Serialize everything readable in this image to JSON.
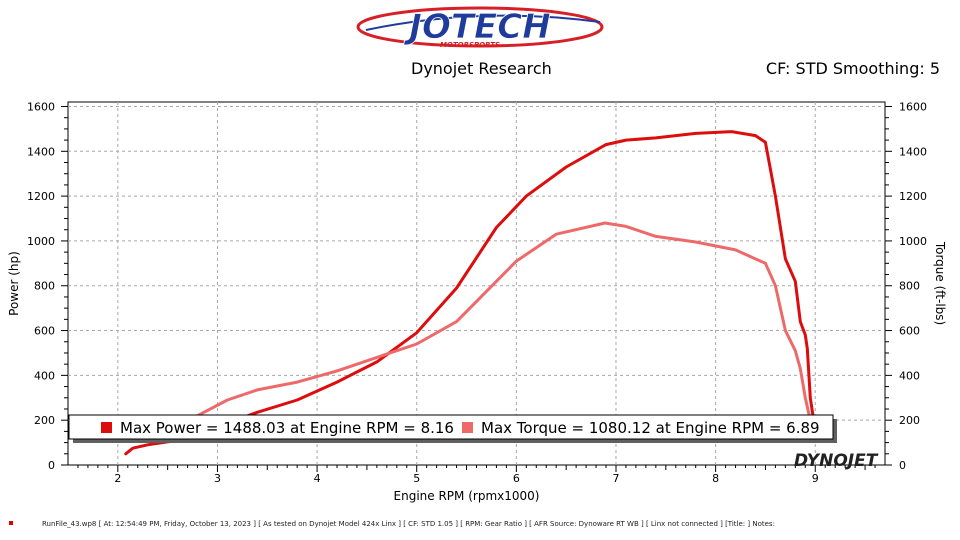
{
  "header": {
    "logo_text": "JOTECH",
    "logo_subtext": "MOTORSPORTS",
    "research": "Dynojet Research",
    "cf_info": "CF: STD Smoothing: 5"
  },
  "colors": {
    "power": "#dd0d0d",
    "torque": "#ee6a6a",
    "logo_red": "#d61f26",
    "logo_blue": "#1f3b9c"
  },
  "chart_data": {
    "type": "line",
    "xlabel": "Engine RPM (rpmx1000)",
    "ylabel_left": "Power (hp)",
    "ylabel_right": "Torque (ft-lbs)",
    "xlim": [
      1.5,
      9.7
    ],
    "ylim": [
      0,
      1620
    ],
    "x_ticks": [
      2,
      3,
      4,
      5,
      6,
      7,
      8,
      9
    ],
    "y_ticks": [
      0,
      200,
      400,
      600,
      800,
      1000,
      1200,
      1400,
      1600
    ],
    "grid": true,
    "legend_position": "bottom",
    "series": [
      {
        "name": "Max Power",
        "color_key": "power",
        "x": [
          2.08,
          2.15,
          2.3,
          2.6,
          3.0,
          3.4,
          3.8,
          4.2,
          4.6,
          5.0,
          5.4,
          5.8,
          6.1,
          6.5,
          6.9,
          7.1,
          7.4,
          7.8,
          8.16,
          8.4,
          8.5,
          8.6,
          8.7,
          8.8,
          8.85,
          8.9,
          8.92,
          8.95,
          8.98
        ],
        "values": [
          50,
          75,
          90,
          110,
          170,
          235,
          290,
          370,
          460,
          590,
          790,
          1060,
          1200,
          1330,
          1430,
          1450,
          1460,
          1480,
          1488,
          1470,
          1440,
          1200,
          920,
          820,
          640,
          580,
          520,
          300,
          210
        ]
      },
      {
        "name": "Max Torque",
        "color_key": "torque",
        "x": [
          2.5,
          2.8,
          3.1,
          3.4,
          3.8,
          4.2,
          4.6,
          5.0,
          5.4,
          5.8,
          6.0,
          6.4,
          6.89,
          7.1,
          7.4,
          7.8,
          8.2,
          8.5,
          8.6,
          8.7,
          8.8,
          8.85,
          8.9,
          8.95
        ],
        "values": [
          190,
          220,
          290,
          335,
          370,
          420,
          480,
          540,
          640,
          820,
          910,
          1030,
          1080,
          1065,
          1020,
          995,
          960,
          900,
          800,
          600,
          510,
          430,
          300,
          200
        ]
      }
    ]
  },
  "legend": {
    "power_label": "Max Power = 1488.03 at Engine RPM = 8.16",
    "torque_label": "Max Torque = 1080.12 at Engine RPM = 6.89"
  },
  "watermark": "DYNOJET",
  "footer": "RunFile_43.wp8 [ At: 12:54:49 PM, Friday, October 13, 2023 ] [ As tested on Dynojet Model 424x Linx ] [ CF: STD 1.05 ] [ RPM: Gear Ratio ] [ AFR Source: Dynoware RT WB ] [ Linx not connected ] [Title: ] Notes:"
}
